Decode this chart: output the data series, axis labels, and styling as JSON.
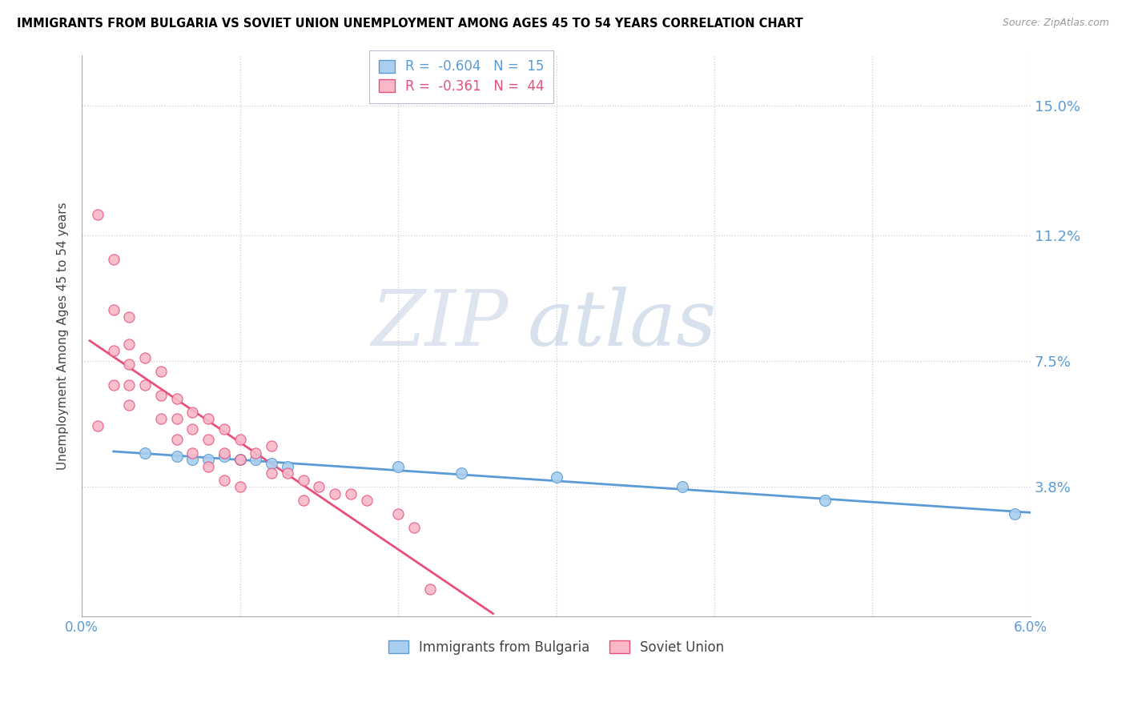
{
  "title": "IMMIGRANTS FROM BULGARIA VS SOVIET UNION UNEMPLOYMENT AMONG AGES 45 TO 54 YEARS CORRELATION CHART",
  "source": "Source: ZipAtlas.com",
  "ylabel": "Unemployment Among Ages 45 to 54 years",
  "xlim": [
    0.0,
    0.06
  ],
  "ylim": [
    0.0,
    0.165
  ],
  "yticks": [
    0.038,
    0.075,
    0.112,
    0.15
  ],
  "ytick_labels": [
    "3.8%",
    "7.5%",
    "11.2%",
    "15.0%"
  ],
  "color_bulgaria": "#aacfee",
  "color_soviet": "#f8b8c8",
  "color_bulgaria_line": "#5b9bd5",
  "color_soviet_line": "#e8507a",
  "watermark_zip": "ZIP",
  "watermark_atlas": "atlas",
  "bulgaria_x": [
    0.004,
    0.006,
    0.007,
    0.008,
    0.009,
    0.01,
    0.011,
    0.012,
    0.013,
    0.02,
    0.024,
    0.03,
    0.038,
    0.047,
    0.059
  ],
  "bulgaria_y": [
    0.048,
    0.047,
    0.046,
    0.046,
    0.047,
    0.046,
    0.046,
    0.045,
    0.044,
    0.044,
    0.042,
    0.041,
    0.038,
    0.034,
    0.03
  ],
  "soviet_x": [
    0.001,
    0.001,
    0.002,
    0.002,
    0.002,
    0.002,
    0.003,
    0.003,
    0.003,
    0.003,
    0.003,
    0.004,
    0.004,
    0.005,
    0.005,
    0.005,
    0.006,
    0.006,
    0.006,
    0.007,
    0.007,
    0.007,
    0.008,
    0.008,
    0.008,
    0.009,
    0.009,
    0.009,
    0.01,
    0.01,
    0.01,
    0.011,
    0.012,
    0.012,
    0.013,
    0.014,
    0.014,
    0.015,
    0.016,
    0.017,
    0.018,
    0.02,
    0.021,
    0.022
  ],
  "soviet_y": [
    0.118,
    0.056,
    0.105,
    0.09,
    0.078,
    0.068,
    0.088,
    0.08,
    0.074,
    0.068,
    0.062,
    0.076,
    0.068,
    0.072,
    0.065,
    0.058,
    0.064,
    0.058,
    0.052,
    0.06,
    0.055,
    0.048,
    0.058,
    0.052,
    0.044,
    0.055,
    0.048,
    0.04,
    0.052,
    0.046,
    0.038,
    0.048,
    0.05,
    0.042,
    0.042,
    0.04,
    0.034,
    0.038,
    0.036,
    0.036,
    0.034,
    0.03,
    0.026,
    0.008
  ]
}
